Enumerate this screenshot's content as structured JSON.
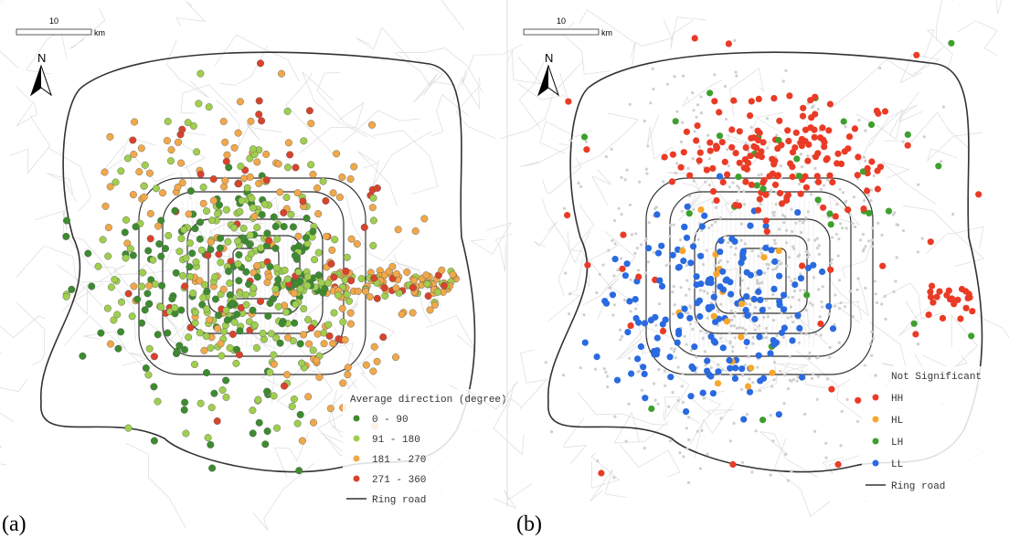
{
  "panels": [
    {
      "label": "(a)",
      "scale_bar": {
        "value": "10",
        "unit": "km"
      },
      "north": "N",
      "legend": {
        "title": "Average direction (degree)",
        "items": [
          {
            "label": "0 - 90",
            "color": "#3d8b2f"
          },
          {
            "label": "91 - 180",
            "color": "#9fcf4e"
          },
          {
            "label": "181 - 270",
            "color": "#f0a84a"
          },
          {
            "label": "271 - 360",
            "color": "#d9432c"
          }
        ],
        "ring_road": "Ring road"
      }
    },
    {
      "label": "(b)",
      "scale_bar": {
        "value": "10",
        "unit": "km"
      },
      "north": "N",
      "legend": {
        "title": null,
        "items": [
          {
            "label": "Not Significant",
            "color": "#cfcfcf"
          },
          {
            "label": "HH",
            "color": "#ea3b26"
          },
          {
            "label": "HL",
            "color": "#f6a72c"
          },
          {
            "label": "LH",
            "color": "#3ea02c"
          },
          {
            "label": "LL",
            "color": "#2a6ae0"
          }
        ],
        "ring_road": "Ring road"
      }
    }
  ]
}
